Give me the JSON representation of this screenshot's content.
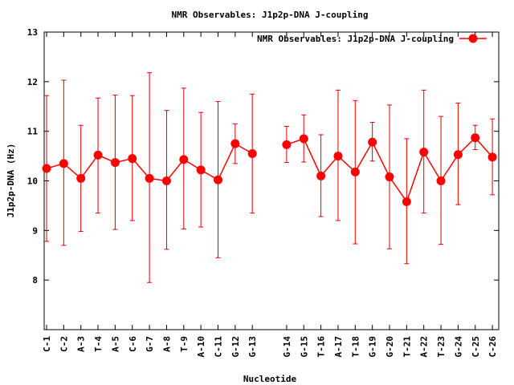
{
  "chart_data": {
    "type": "line",
    "title": "NMR Observables: J1p2p-DNA J-coupling",
    "xlabel": "Nucleotide",
    "ylabel": "J1p2p-DNA (Hz)",
    "ylim": [
      7,
      13
    ],
    "yticks": [
      8,
      9,
      10,
      11,
      12,
      13
    ],
    "grid": false,
    "legend_position": "top-right",
    "colors": {
      "series": "#ff0000",
      "error_bars": "#dd0000",
      "text": "#000000",
      "background": "#ffffff"
    },
    "categories": [
      "C-1",
      "C-2",
      "A-3",
      "T-4",
      "A-5",
      "C-6",
      "G-7",
      "A-8",
      "T-9",
      "A-10",
      "C-11",
      "G-12",
      "G-13",
      "G-14",
      "G-15",
      "T-16",
      "A-17",
      "T-18",
      "G-19",
      "G-20",
      "T-21",
      "A-22",
      "T-23",
      "G-24",
      "C-25",
      "C-26"
    ],
    "series": [
      {
        "name": "NMR Observables: J1p2p-DNA J-coupling",
        "values": [
          10.25,
          10.35,
          10.05,
          10.52,
          10.37,
          10.45,
          10.05,
          10.0,
          10.43,
          10.22,
          10.02,
          10.75,
          10.55,
          10.73,
          10.85,
          10.1,
          10.5,
          10.18,
          10.78,
          10.08,
          9.58,
          10.58,
          10.0,
          10.53,
          10.87,
          10.48
        ],
        "error_low": [
          8.78,
          8.7,
          8.98,
          9.35,
          9.02,
          9.2,
          7.95,
          8.62,
          9.03,
          9.07,
          8.45,
          10.35,
          9.35,
          10.37,
          10.38,
          9.28,
          9.2,
          8.73,
          10.4,
          8.63,
          8.33,
          9.35,
          8.72,
          9.52,
          10.63,
          9.72
        ],
        "error_high": [
          11.72,
          12.03,
          11.12,
          11.67,
          11.73,
          11.72,
          12.18,
          11.42,
          11.87,
          11.38,
          11.6,
          11.15,
          11.75,
          11.1,
          11.33,
          10.93,
          11.83,
          11.62,
          11.18,
          11.53,
          10.85,
          11.83,
          11.3,
          11.57,
          11.12,
          11.25
        ],
        "segments": [
          [
            0,
            12
          ],
          [
            13,
            25
          ]
        ]
      }
    ]
  }
}
